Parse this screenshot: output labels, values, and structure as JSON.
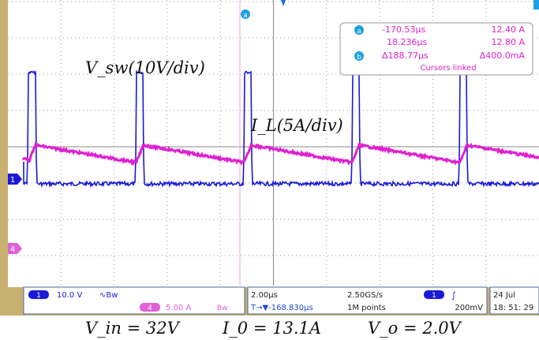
{
  "cursor_panel": {
    "a_marker": "a",
    "b_marker": "b",
    "a_time": "-170.53µs",
    "a_value": "12.40 A",
    "row2_time": "18.236µs",
    "row2_value": "12.80 A",
    "delta_time": "Δ188.77µs",
    "delta_value": "Δ400.0mA",
    "linked": "Cursors linked"
  },
  "top_marker": "a",
  "labels": {
    "vsw": "V_sw(10V/div)",
    "il": "I_L(5A/div)"
  },
  "status_bar": {
    "ch1_num": "1",
    "ch1_scale": "10.0 V",
    "ch1_coupling": "∿Bw",
    "ch4_num": "4",
    "ch4_scale": "5.00 A",
    "ch4_bw": "Bw",
    "timebase": "2.00µs",
    "trig_pos": "T→▼-168.830µs",
    "sample_rate": "2.50GS/s",
    "record": "1M points",
    "trig_ch": "1",
    "trig_slope": "∫",
    "trig_level": "200mV",
    "date": "24 Jul",
    "time": "18: 51: 29"
  },
  "side_markers": {
    "ch1": "1",
    "ch4": "4"
  },
  "bottom_caption": {
    "vin": "V_in = 32V",
    "io": "I_0 = 13.1A",
    "vo": "V_o = 2.0V"
  },
  "colors": {
    "ch1": "#1a1ad8",
    "ch4": "#e020d0",
    "grid": "#7a7a7a",
    "bezel": "#c8b070"
  }
}
